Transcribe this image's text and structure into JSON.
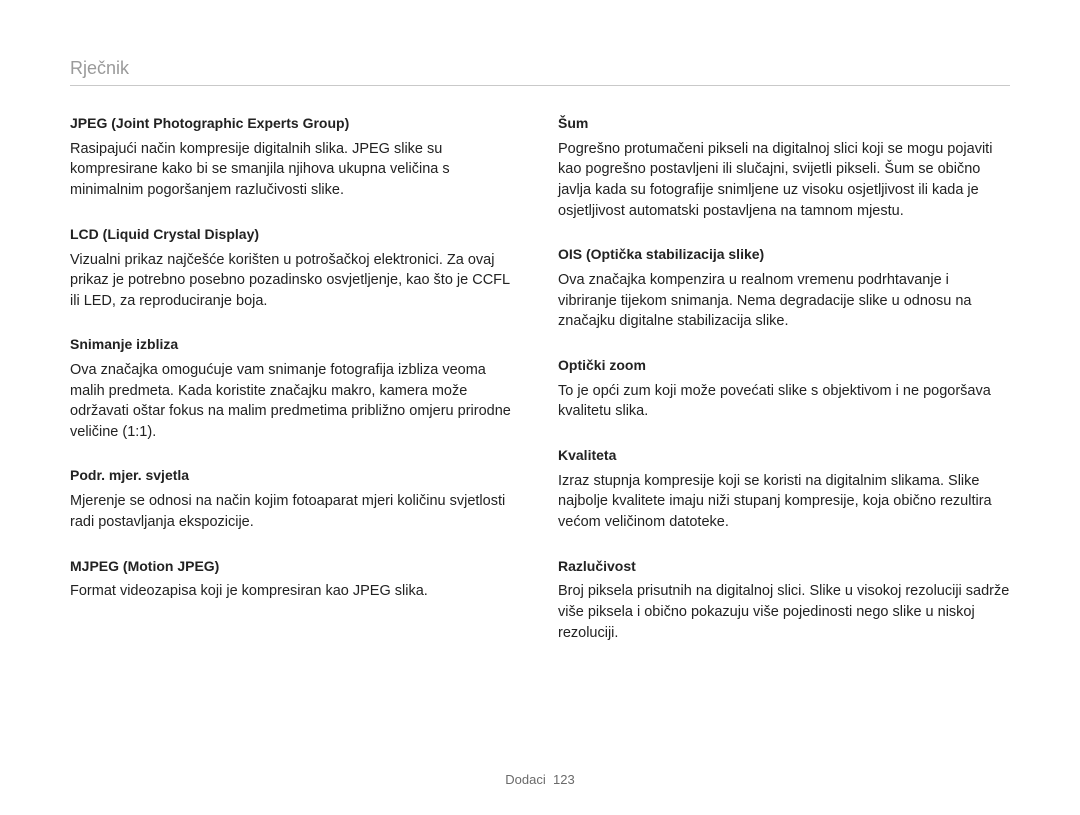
{
  "header": {
    "title": "Rječnik"
  },
  "footer": {
    "section": "Dodaci",
    "page": "123"
  },
  "left": [
    {
      "term": "JPEG (Joint Photographic Experts Group)",
      "def": "Rasipajući način kompresije digitalnih slika. JPEG slike su kompresirane kako bi se smanjila njihova ukupna veličina s minimalnim pogoršanjem razlučivosti slike."
    },
    {
      "term": "LCD (Liquid Crystal Display)",
      "def": "Vizualni prikaz najčešće korišten u potrošačkoj elektronici. Za ovaj prikaz je potrebno posebno pozadinsko osvjetljenje, kao što je CCFL ili LED, za reproduciranje boja."
    },
    {
      "term": "Snimanje izbliza",
      "def": "Ova značajka omogućuje vam snimanje fotografija izbliza veoma malih predmeta. Kada koristite značajku makro, kamera može održavati oštar fokus na malim predmetima približno omjeru prirodne veličine (1:1)."
    },
    {
      "term": "Podr. mjer. svjetla",
      "def": "Mjerenje se odnosi na način kojim fotoaparat mjeri količinu svjetlosti radi postavljanja ekspozicije."
    },
    {
      "term": "MJPEG (Motion JPEG)",
      "def": "Format videozapisa koji je kompresiran kao JPEG slika."
    }
  ],
  "right": [
    {
      "term": "Šum",
      "def": "Pogrešno protumačeni pikseli na digitalnoj slici koji se mogu pojaviti kao pogrešno postavljeni ili slučajni, svijetli pikseli. Šum se obično javlja kada su fotografije snimljene uz visoku osjetljivost ili kada je osjetljivost automatski postavljena na tamnom mjestu."
    },
    {
      "term": "OIS (Optička stabilizacija slike)",
      "def": "Ova značajka kompenzira u realnom vremenu podrhtavanje i vibriranje tijekom snimanja. Nema degradacije slike u odnosu na značajku digitalne stabilizacija slike."
    },
    {
      "term": "Optički zoom",
      "def": "To je opći zum koji može povećati slike s objektivom i ne pogoršava kvalitetu slika."
    },
    {
      "term": "Kvaliteta",
      "def": "Izraz stupnja kompresije koji se koristi na digitalnim slikama. Slike najbolje kvalitete imaju niži stupanj kompresije, koja obično rezultira većom veličinom datoteke."
    },
    {
      "term": "Razlučivost",
      "def": "Broj piksela prisutnih na digitalnoj slici. Slike u visokoj rezoluciji sadrže više piksela i obično pokazuju više pojedinosti nego slike u niskoj rezoluciji."
    }
  ]
}
